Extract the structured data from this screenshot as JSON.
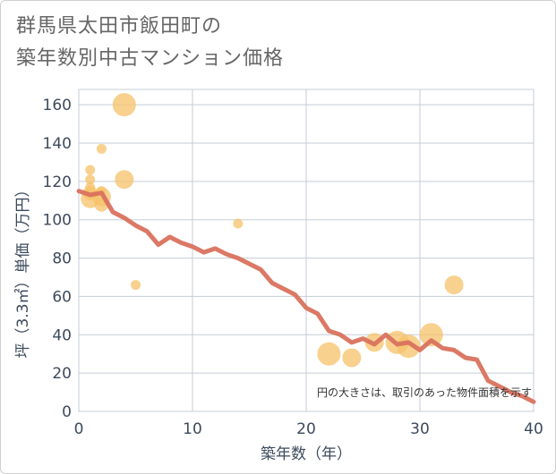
{
  "chart_data": {
    "type": "scatter",
    "title_lines": [
      "群馬県太田市飯田町の",
      "築年数別中古マンション価格"
    ],
    "xlabel": "築年数（年）",
    "ylabel": "坪（3.3㎡）単価（万円）",
    "xlim": [
      0,
      40
    ],
    "ylim": [
      0,
      168
    ],
    "xticks": [
      0,
      10,
      20,
      30,
      40
    ],
    "yticks": [
      0,
      20,
      40,
      60,
      80,
      100,
      120,
      140,
      160
    ],
    "grid": true,
    "note": "円の大きさは、取引のあった物件面積を示す",
    "colors": {
      "bubble": "#f5c168",
      "line": "#d9725e",
      "grid": "#c5cdd6",
      "text": "#3d4a5c"
    },
    "scatter_points": [
      {
        "x": 1,
        "y": 126,
        "size": 1
      },
      {
        "x": 1,
        "y": 121,
        "size": 1
      },
      {
        "x": 1,
        "y": 117,
        "size": 1
      },
      {
        "x": 1,
        "y": 114,
        "size": 2
      },
      {
        "x": 1,
        "y": 111,
        "size": 3
      },
      {
        "x": 2,
        "y": 137,
        "size": 1
      },
      {
        "x": 2,
        "y": 115,
        "size": 1
      },
      {
        "x": 2,
        "y": 112,
        "size": 3
      },
      {
        "x": 2,
        "y": 108,
        "size": 2
      },
      {
        "x": 4,
        "y": 160,
        "size": 4
      },
      {
        "x": 4,
        "y": 121,
        "size": 3
      },
      {
        "x": 5,
        "y": 66,
        "size": 1
      },
      {
        "x": 14,
        "y": 98,
        "size": 1
      },
      {
        "x": 22,
        "y": 30,
        "size": 4
      },
      {
        "x": 24,
        "y": 28,
        "size": 3
      },
      {
        "x": 26,
        "y": 36,
        "size": 3
      },
      {
        "x": 28,
        "y": 36,
        "size": 4
      },
      {
        "x": 29,
        "y": 34,
        "size": 4
      },
      {
        "x": 31,
        "y": 40,
        "size": 4
      },
      {
        "x": 33,
        "y": 66,
        "size": 3
      }
    ],
    "trend_x": [
      0,
      1,
      2,
      3,
      4,
      5,
      6,
      7,
      8,
      9,
      10,
      11,
      12,
      13,
      14,
      15,
      16,
      17,
      18,
      19,
      20,
      21,
      22,
      23,
      24,
      25,
      26,
      27,
      28,
      29,
      30,
      31,
      32,
      33,
      34,
      35,
      36,
      37,
      38,
      39,
      40
    ],
    "trend_y": [
      115,
      113,
      114,
      104,
      101,
      97,
      94,
      87,
      91,
      88,
      86,
      83,
      85,
      82,
      80,
      77,
      74,
      67,
      64,
      61,
      54,
      51,
      42,
      40,
      36,
      38,
      35,
      40,
      35,
      36,
      32,
      37,
      33,
      32,
      28,
      27,
      16,
      13,
      10,
      8,
      5
    ]
  }
}
